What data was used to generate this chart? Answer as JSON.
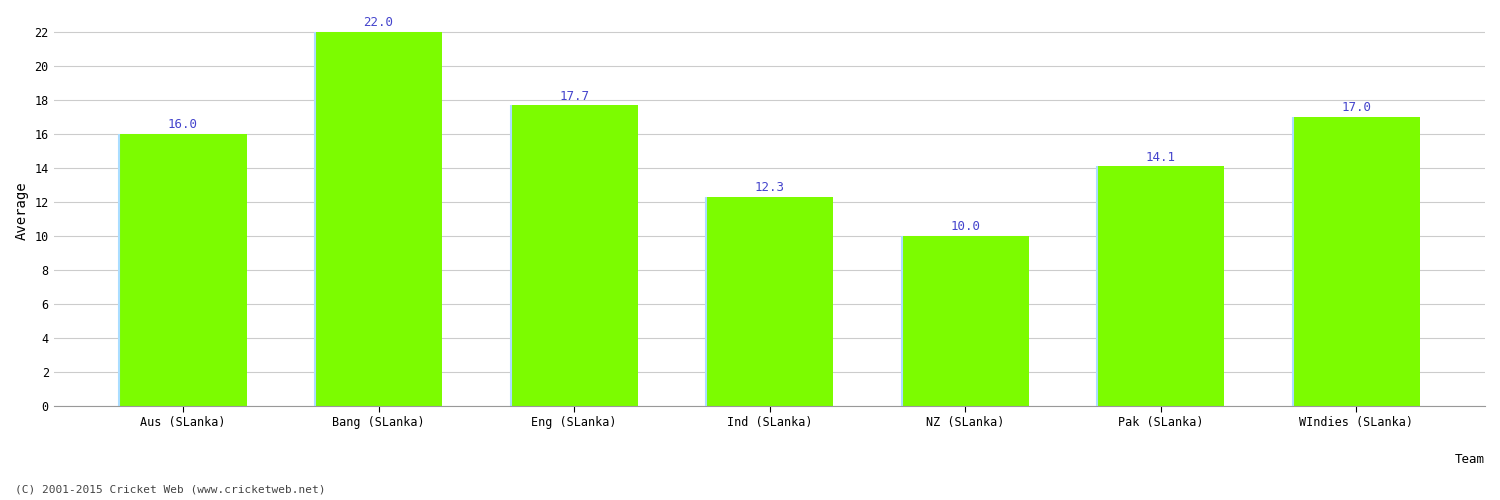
{
  "categories": [
    "Aus (SLanka)",
    "Bang (SLanka)",
    "Eng (SLanka)",
    "Ind (SLanka)",
    "NZ (SLanka)",
    "Pak (SLanka)",
    "WIndies (SLanka)"
  ],
  "values": [
    16.0,
    22.0,
    17.7,
    12.3,
    10.0,
    14.1,
    17.0
  ],
  "bar_color": "#7cfc00",
  "bar_edge_color_left": "#aaddff",
  "bar_edge_color_other": "#7cfc00",
  "value_label_color": "#4444cc",
  "value_label_fontsize": 9,
  "xlabel": "Team",
  "ylabel": "Average",
  "ylim": [
    0,
    23
  ],
  "yticks": [
    0,
    2,
    4,
    6,
    8,
    10,
    12,
    14,
    16,
    18,
    20,
    22
  ],
  "grid_color": "#cccccc",
  "background_color": "#ffffff",
  "axes_color": "#888888",
  "footer_text": "(C) 2001-2015 Cricket Web (www.cricketweb.net)",
  "footer_fontsize": 8,
  "footer_color": "#444444",
  "ylabel_fontsize": 10,
  "tick_fontsize": 8.5,
  "bar_width": 0.65,
  "xlabel_fontsize": 9
}
